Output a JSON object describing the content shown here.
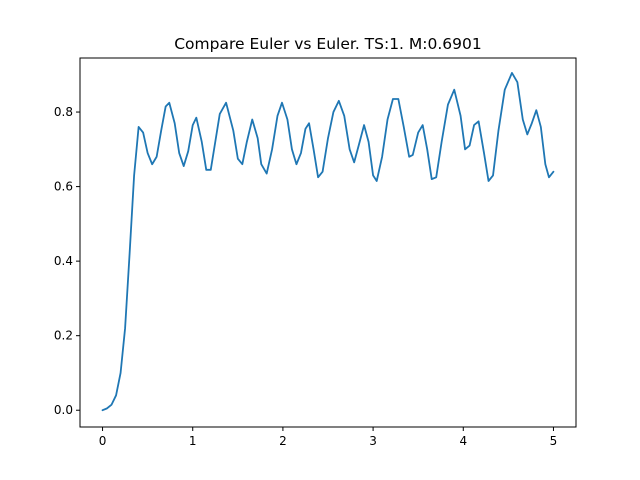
{
  "chart_data": {
    "type": "line",
    "title": "Compare Euler vs Euler. TS:1. M:0.6901",
    "xlabel": "",
    "ylabel": "",
    "xlim": [
      -0.25,
      5.25
    ],
    "ylim": [
      -0.045,
      0.945
    ],
    "x_ticks": [
      0,
      1,
      2,
      3,
      4,
      5
    ],
    "x_tick_labels": [
      "0",
      "1",
      "2",
      "3",
      "4",
      "5"
    ],
    "y_ticks": [
      0.0,
      0.2,
      0.4,
      0.6,
      0.8
    ],
    "y_tick_labels": [
      "0.0",
      "0.2",
      "0.4",
      "0.6",
      "0.8"
    ],
    "grid": false,
    "series": [
      {
        "color": "#1f77b4",
        "points": [
          [
            0.0,
            0.0
          ],
          [
            0.05,
            0.005
          ],
          [
            0.1,
            0.015
          ],
          [
            0.15,
            0.04
          ],
          [
            0.2,
            0.1
          ],
          [
            0.25,
            0.22
          ],
          [
            0.3,
            0.42
          ],
          [
            0.35,
            0.63
          ],
          [
            0.4,
            0.76
          ],
          [
            0.45,
            0.745
          ],
          [
            0.5,
            0.69
          ],
          [
            0.55,
            0.66
          ],
          [
            0.6,
            0.68
          ],
          [
            0.65,
            0.75
          ],
          [
            0.7,
            0.815
          ],
          [
            0.74,
            0.825
          ],
          [
            0.8,
            0.77
          ],
          [
            0.85,
            0.69
          ],
          [
            0.9,
            0.655
          ],
          [
            0.95,
            0.695
          ],
          [
            1.0,
            0.765
          ],
          [
            1.04,
            0.785
          ],
          [
            1.1,
            0.72
          ],
          [
            1.15,
            0.645
          ],
          [
            1.2,
            0.645
          ],
          [
            1.25,
            0.72
          ],
          [
            1.3,
            0.795
          ],
          [
            1.37,
            0.825
          ],
          [
            1.45,
            0.75
          ],
          [
            1.5,
            0.675
          ],
          [
            1.55,
            0.66
          ],
          [
            1.6,
            0.72
          ],
          [
            1.66,
            0.78
          ],
          [
            1.72,
            0.73
          ],
          [
            1.76,
            0.66
          ],
          [
            1.82,
            0.635
          ],
          [
            1.88,
            0.7
          ],
          [
            1.94,
            0.79
          ],
          [
            1.99,
            0.825
          ],
          [
            2.05,
            0.78
          ],
          [
            2.1,
            0.7
          ],
          [
            2.15,
            0.66
          ],
          [
            2.2,
            0.69
          ],
          [
            2.25,
            0.755
          ],
          [
            2.29,
            0.77
          ],
          [
            2.34,
            0.7
          ],
          [
            2.39,
            0.625
          ],
          [
            2.44,
            0.64
          ],
          [
            2.5,
            0.73
          ],
          [
            2.56,
            0.8
          ],
          [
            2.62,
            0.83
          ],
          [
            2.68,
            0.79
          ],
          [
            2.74,
            0.7
          ],
          [
            2.79,
            0.665
          ],
          [
            2.84,
            0.71
          ],
          [
            2.9,
            0.765
          ],
          [
            2.95,
            0.72
          ],
          [
            3.0,
            0.63
          ],
          [
            3.04,
            0.615
          ],
          [
            3.1,
            0.68
          ],
          [
            3.16,
            0.78
          ],
          [
            3.22,
            0.835
          ],
          [
            3.28,
            0.835
          ],
          [
            3.34,
            0.76
          ],
          [
            3.4,
            0.68
          ],
          [
            3.44,
            0.685
          ],
          [
            3.5,
            0.745
          ],
          [
            3.55,
            0.765
          ],
          [
            3.6,
            0.7
          ],
          [
            3.65,
            0.62
          ],
          [
            3.7,
            0.625
          ],
          [
            3.76,
            0.72
          ],
          [
            3.83,
            0.82
          ],
          [
            3.9,
            0.86
          ],
          [
            3.97,
            0.79
          ],
          [
            4.02,
            0.7
          ],
          [
            4.07,
            0.71
          ],
          [
            4.12,
            0.765
          ],
          [
            4.17,
            0.775
          ],
          [
            4.23,
            0.69
          ],
          [
            4.28,
            0.615
          ],
          [
            4.33,
            0.63
          ],
          [
            4.39,
            0.75
          ],
          [
            4.46,
            0.86
          ],
          [
            4.54,
            0.905
          ],
          [
            4.6,
            0.88
          ],
          [
            4.66,
            0.78
          ],
          [
            4.71,
            0.74
          ],
          [
            4.76,
            0.77
          ],
          [
            4.81,
            0.805
          ],
          [
            4.86,
            0.76
          ],
          [
            4.91,
            0.66
          ],
          [
            4.95,
            0.625
          ],
          [
            5.0,
            0.64
          ]
        ]
      }
    ]
  }
}
